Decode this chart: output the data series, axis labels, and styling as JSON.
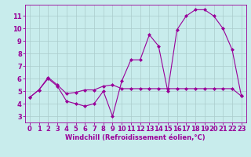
{
  "background_color": "#c8ecec",
  "line_color": "#990099",
  "grid_color": "#aacccc",
  "xlim": [
    -0.5,
    23.5
  ],
  "ylim": [
    2.5,
    11.9
  ],
  "xticks": [
    0,
    1,
    2,
    3,
    4,
    5,
    6,
    7,
    8,
    9,
    10,
    11,
    12,
    13,
    14,
    15,
    16,
    17,
    18,
    19,
    20,
    21,
    22,
    23
  ],
  "yticks": [
    3,
    4,
    5,
    6,
    7,
    8,
    9,
    10,
    11
  ],
  "line1_x": [
    0,
    1,
    2,
    3,
    4,
    5,
    6,
    7,
    8,
    9,
    10,
    11,
    12,
    13,
    14,
    15,
    16,
    17,
    18,
    19,
    20,
    21,
    22,
    23
  ],
  "line1_y": [
    4.5,
    5.1,
    6.0,
    5.4,
    4.2,
    4.0,
    3.8,
    4.0,
    5.0,
    3.0,
    5.8,
    7.5,
    7.5,
    9.5,
    8.6,
    5.0,
    9.9,
    11.0,
    11.5,
    11.5,
    11.0,
    10.0,
    8.3,
    4.6
  ],
  "line2_x": [
    0,
    1,
    2,
    3,
    4,
    5,
    6,
    7,
    8,
    9,
    10,
    11,
    12,
    13,
    14,
    15,
    16,
    17,
    18,
    19,
    20,
    21,
    22,
    23
  ],
  "line2_y": [
    4.5,
    5.1,
    6.1,
    5.5,
    4.8,
    4.9,
    5.1,
    5.1,
    5.4,
    5.5,
    5.2,
    5.2,
    5.2,
    5.2,
    5.2,
    5.2,
    5.2,
    5.2,
    5.2,
    5.2,
    5.2,
    5.2,
    5.2,
    4.6
  ],
  "xlabel": "Windchill (Refroidissement éolien,°C)",
  "xlabel_fontsize": 6,
  "tick_fontsize": 6,
  "marker": "D",
  "markersize": 2,
  "linewidth": 0.8
}
